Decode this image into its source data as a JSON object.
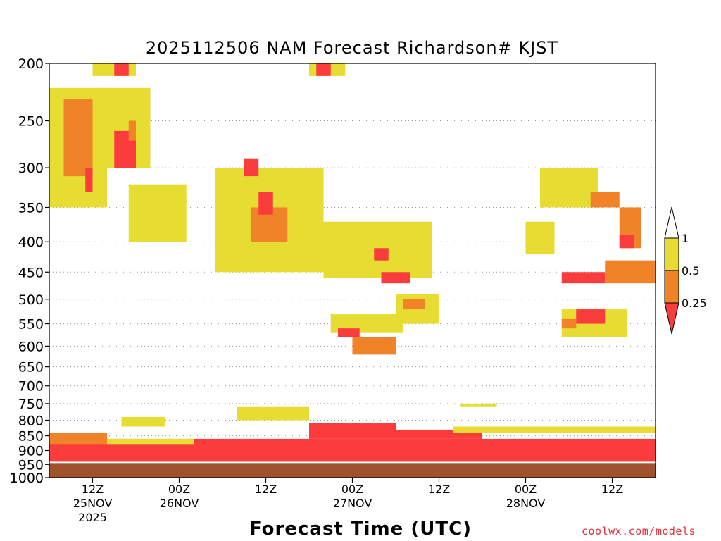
{
  "chart_data": {
    "type": "heatmap",
    "title": "2025112506 NAM Forecast Richardson# KJST",
    "xlabel": "Forecast Time (UTC)",
    "ylabel": "",
    "y_scale": "log",
    "y_inverted": true,
    "ylim": [
      1000,
      200
    ],
    "xlim_hours": [
      0,
      84
    ],
    "x_ticks": [
      {
        "hour": 6,
        "label": "12Z",
        "date": "25NOV",
        "year": "2025"
      },
      {
        "hour": 18,
        "label": "00Z",
        "date": "26NOV",
        "year": ""
      },
      {
        "hour": 30,
        "label": "12Z",
        "date": "",
        "year": ""
      },
      {
        "hour": 42,
        "label": "00Z",
        "date": "27NOV",
        "year": ""
      },
      {
        "hour": 54,
        "label": "12Z",
        "date": "",
        "year": ""
      },
      {
        "hour": 66,
        "label": "00Z",
        "date": "28NOV",
        "year": ""
      },
      {
        "hour": 78,
        "label": "12Z",
        "date": "",
        "year": ""
      }
    ],
    "y_ticks": [
      200,
      250,
      300,
      350,
      400,
      450,
      500,
      550,
      600,
      650,
      700,
      750,
      800,
      850,
      900,
      950,
      1000
    ],
    "grid_y": true,
    "legend": {
      "placement": "right",
      "levels": [
        {
          "label": "1",
          "color": "#ffffff"
        },
        {
          "label": "0.5",
          "color": "#e6dc32"
        },
        {
          "label": "0.25",
          "color": "#f08228"
        },
        {
          "label": "",
          "color": "#fa3c3c"
        }
      ]
    },
    "colors": {
      "lt_0_25": "#fa3c3c",
      "0_25_to_0_5": "#f08228",
      "0_5_to_1": "#e6dc32",
      "ground": "#a0522d"
    },
    "regions": [
      {
        "class": "lt_0_25",
        "t0": 0,
        "t1": 84,
        "p0": 940,
        "p1": 860
      },
      {
        "class": "lt_0_25",
        "t0": 36,
        "t1": 48,
        "p0": 860,
        "p1": 810
      },
      {
        "class": "lt_0_25",
        "t0": 48,
        "t1": 60,
        "p0": 860,
        "p1": 830
      },
      {
        "class": "0_25_to_0_5",
        "t0": 0,
        "t1": 8,
        "p0": 880,
        "p1": 840
      },
      {
        "class": "0_5_to_1",
        "t0": 8,
        "t1": 20,
        "p0": 880,
        "p1": 860
      },
      {
        "class": "0_5_to_1",
        "t0": 10,
        "t1": 16,
        "p0": 820,
        "p1": 790
      },
      {
        "class": "0_5_to_1",
        "t0": 26,
        "t1": 36,
        "p0": 800,
        "p1": 760
      },
      {
        "class": "0_5_to_1",
        "t0": 56,
        "t1": 84,
        "p0": 840,
        "p1": 820
      },
      {
        "class": "0_5_to_1",
        "t0": 57,
        "t1": 62,
        "p0": 760,
        "p1": 750
      },
      {
        "class": "0_5_to_1",
        "t0": 39,
        "t1": 49,
        "p0": 570,
        "p1": 530
      },
      {
        "class": "0_25_to_0_5",
        "t0": 42,
        "t1": 48,
        "p0": 620,
        "p1": 580
      },
      {
        "class": "lt_0_25",
        "t0": 40,
        "t1": 43,
        "p0": 580,
        "p1": 560
      },
      {
        "class": "0_5_to_1",
        "t0": 48,
        "t1": 54,
        "p0": 550,
        "p1": 490
      },
      {
        "class": "0_25_to_0_5",
        "t0": 49,
        "t1": 52,
        "p0": 520,
        "p1": 500
      },
      {
        "class": "0_5_to_1",
        "t0": 71,
        "t1": 80,
        "p0": 580,
        "p1": 520
      },
      {
        "class": "lt_0_25",
        "t0": 73,
        "t1": 77,
        "p0": 550,
        "p1": 520
      },
      {
        "class": "0_25_to_0_5",
        "t0": 71,
        "t1": 73,
        "p0": 560,
        "p1": 540
      },
      {
        "class": "lt_0_25",
        "t0": 71,
        "t1": 77,
        "p0": 470,
        "p1": 450
      },
      {
        "class": "0_25_to_0_5",
        "t0": 77,
        "t1": 84,
        "p0": 470,
        "p1": 430
      },
      {
        "class": "0_5_to_1",
        "t0": 68,
        "t1": 76,
        "p0": 350,
        "p1": 300
      },
      {
        "class": "0_25_to_0_5",
        "t0": 75,
        "t1": 79,
        "p0": 350,
        "p1": 330
      },
      {
        "class": "0_25_to_0_5",
        "t0": 79,
        "t1": 82,
        "p0": 410,
        "p1": 350
      },
      {
        "class": "lt_0_25",
        "t0": 79,
        "t1": 81,
        "p0": 410,
        "p1": 390
      },
      {
        "class": "0_5_to_1",
        "t0": 66,
        "t1": 70,
        "p0": 420,
        "p1": 370
      },
      {
        "class": "0_5_to_1",
        "t0": 0,
        "t1": 8,
        "p0": 350,
        "p1": 220
      },
      {
        "class": "0_25_to_0_5",
        "t0": 2,
        "t1": 6,
        "p0": 310,
        "p1": 230
      },
      {
        "class": "lt_0_25",
        "t0": 5,
        "t1": 6,
        "p0": 330,
        "p1": 300
      },
      {
        "class": "0_5_to_1",
        "t0": 7,
        "t1": 14,
        "p0": 300,
        "p1": 220
      },
      {
        "class": "lt_0_25",
        "t0": 9,
        "t1": 12,
        "p0": 300,
        "p1": 260
      },
      {
        "class": "0_25_to_0_5",
        "t0": 11,
        "t1": 12,
        "p0": 270,
        "p1": 250
      },
      {
        "class": "0_5_to_1",
        "t0": 6,
        "t1": 12,
        "p0": 210,
        "p1": 200
      },
      {
        "class": "lt_0_25",
        "t0": 9,
        "t1": 11,
        "p0": 210,
        "p1": 200
      },
      {
        "class": "0_5_to_1",
        "t0": 36,
        "t1": 41,
        "p0": 210,
        "p1": 200
      },
      {
        "class": "lt_0_25",
        "t0": 37,
        "t1": 39,
        "p0": 210,
        "p1": 200
      },
      {
        "class": "0_5_to_1",
        "t0": 23,
        "t1": 38,
        "p0": 450,
        "p1": 300
      },
      {
        "class": "0_25_to_0_5",
        "t0": 28,
        "t1": 33,
        "p0": 400,
        "p1": 350
      },
      {
        "class": "lt_0_25",
        "t0": 27,
        "t1": 29,
        "p0": 310,
        "p1": 290
      },
      {
        "class": "lt_0_25",
        "t0": 29,
        "t1": 31,
        "p0": 360,
        "p1": 330
      },
      {
        "class": "0_5_to_1",
        "t0": 38,
        "t1": 53,
        "p0": 460,
        "p1": 370
      },
      {
        "class": "lt_0_25",
        "t0": 45,
        "t1": 47,
        "p0": 430,
        "p1": 410
      },
      {
        "class": "lt_0_25",
        "t0": 46,
        "t1": 50,
        "p0": 470,
        "p1": 450
      },
      {
        "class": "0_5_to_1",
        "t0": 11,
        "t1": 19,
        "p0": 400,
        "p1": 320
      }
    ]
  }
}
